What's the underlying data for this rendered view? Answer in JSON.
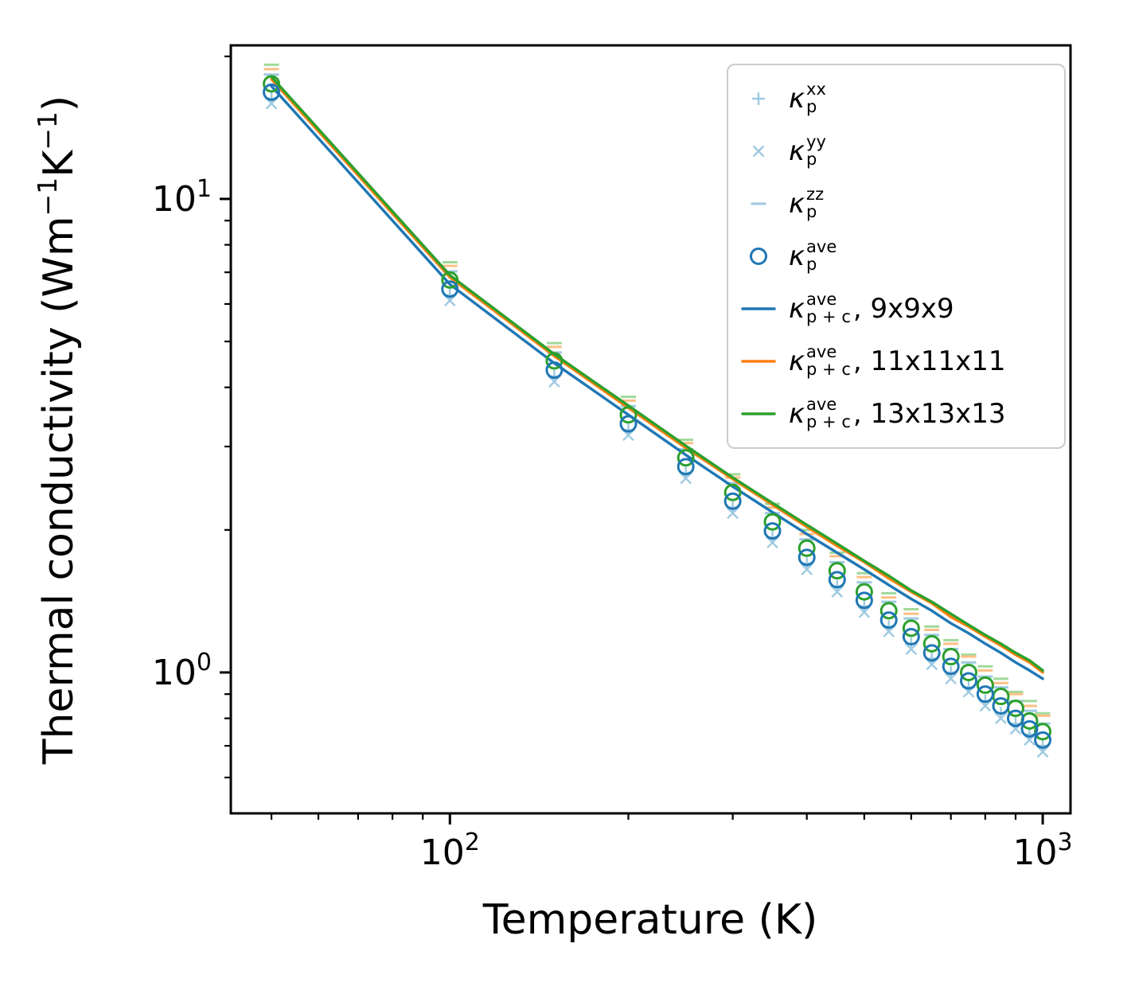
{
  "axes": {
    "xlabel": "Temperature (K)",
    "ylabel_segments": [
      {
        "text": "Thermal conductivity (Wm"
      },
      {
        "sup": "−1"
      },
      {
        "text": "K"
      },
      {
        "sup": "−1"
      },
      {
        "text": ")"
      }
    ],
    "xticks": [
      {
        "value": 100,
        "base": "10",
        "exp": "2"
      },
      {
        "value": 1000,
        "base": "10",
        "exp": "3"
      }
    ],
    "yticks": [
      {
        "value": 10,
        "base": "10",
        "exp": "1"
      },
      {
        "value": 1,
        "base": "10",
        "exp": "0"
      }
    ]
  },
  "colors": {
    "blue": "#1f77b4",
    "orange": "#ff7f0e",
    "green": "#2ca02c",
    "light_blue": "#9ecae1",
    "light_orange": "#fdbf85",
    "light_green": "#a1d99b",
    "axis": "#000000",
    "legend_border": "#cccccc"
  },
  "legend": {
    "kappa": "κ",
    "items": [
      {
        "id": "kp-xx",
        "sup": "xx",
        "sub": "p",
        "suffix": "",
        "marker": "plus",
        "color": "#9ecae1"
      },
      {
        "id": "kp-yy",
        "sup": "yy",
        "sub": "p",
        "suffix": "",
        "marker": "x",
        "color": "#9ecae1"
      },
      {
        "id": "kp-zz",
        "sup": "zz",
        "sub": "p",
        "suffix": "",
        "marker": "dash",
        "color": "#9ecae1"
      },
      {
        "id": "kp-ave",
        "sup": "ave",
        "sub": "p",
        "suffix": "",
        "marker": "circle",
        "color": "#1f77b4"
      },
      {
        "id": "kpc-9",
        "sup": "ave",
        "sub": "p + c",
        "suffix": ", 9x9x9",
        "marker": "line",
        "color": "#1f77b4"
      },
      {
        "id": "kpc-11",
        "sup": "ave",
        "sub": "p + c",
        "suffix": ", 11x11x11",
        "marker": "line",
        "color": "#ff7f0e"
      },
      {
        "id": "kpc-13",
        "sup": "ave",
        "sub": "p + c",
        "suffix": ", 13x13x13",
        "marker": "line",
        "color": "#2ca02c"
      }
    ]
  },
  "chart_data": {
    "type": "scatter",
    "title": "",
    "xlabel": "Temperature (K)",
    "ylabel": "Thermal conductivity (Wm⁻¹K⁻¹)",
    "xscale": "log",
    "yscale": "log",
    "xlim": [
      42.7,
      1114
    ],
    "ylim": [
      0.504,
      21.1
    ],
    "grid": false,
    "legend_position": "upper right",
    "x": [
      50,
      100,
      150,
      200,
      250,
      300,
      350,
      400,
      450,
      500,
      550,
      600,
      650,
      700,
      750,
      800,
      850,
      900,
      950,
      1000
    ],
    "series": [
      {
        "id": "kp-zz-13",
        "name": "κ_p^zz (13x13x13)",
        "style": "scatter",
        "marker": "dash",
        "color": "#a1d99b",
        "values": [
          19.2,
          7.35,
          4.96,
          3.82,
          3.1,
          2.62,
          2.27,
          2.0,
          1.79,
          1.62,
          1.47,
          1.36,
          1.25,
          1.17,
          1.09,
          1.03,
          0.97,
          0.91,
          0.87,
          0.82
        ]
      },
      {
        "id": "kp-zz-11",
        "name": "κ_p^zz (11x11x11)",
        "style": "scatter",
        "marker": "dash",
        "color": "#fdbf85",
        "values": [
          18.8,
          7.22,
          4.87,
          3.75,
          3.05,
          2.58,
          2.23,
          1.96,
          1.76,
          1.59,
          1.44,
          1.33,
          1.23,
          1.15,
          1.08,
          1.01,
          0.95,
          0.9,
          0.85,
          0.81
        ]
      },
      {
        "id": "kp-zz-9",
        "name": "κ_p^zz",
        "style": "scatter",
        "marker": "dash",
        "color": "#9ecae1",
        "values": [
          18.3,
          7.03,
          4.74,
          3.65,
          2.96,
          2.51,
          2.17,
          1.91,
          1.71,
          1.55,
          1.41,
          1.3,
          1.2,
          1.12,
          1.05,
          0.98,
          0.93,
          0.87,
          0.83,
          0.78
        ]
      },
      {
        "id": "kp-xx",
        "name": "κ_p^xx",
        "style": "scatter",
        "marker": "plus",
        "color": "#9ecae1",
        "values": [
          16.3,
          6.26,
          4.22,
          3.25,
          2.64,
          2.23,
          1.93,
          1.7,
          1.52,
          1.38,
          1.25,
          1.15,
          1.07,
          1.0,
          0.93,
          0.87,
          0.82,
          0.78,
          0.74,
          0.7
        ]
      },
      {
        "id": "kp-yy",
        "name": "κ_p^yy",
        "style": "scatter",
        "marker": "x",
        "color": "#9ecae1",
        "values": [
          15.9,
          6.1,
          4.11,
          3.17,
          2.57,
          2.17,
          1.88,
          1.65,
          1.48,
          1.34,
          1.22,
          1.12,
          1.04,
          0.97,
          0.91,
          0.85,
          0.8,
          0.76,
          0.72,
          0.68
        ]
      },
      {
        "id": "kpc-9",
        "name": "κ_p+c^ave, 9x9x9",
        "style": "line",
        "color": "#1f77b4",
        "values": [
          17.3,
          6.6,
          4.5,
          3.5,
          2.88,
          2.47,
          2.18,
          1.96,
          1.79,
          1.65,
          1.53,
          1.43,
          1.35,
          1.27,
          1.21,
          1.15,
          1.1,
          1.05,
          1.01,
          0.97
        ]
      },
      {
        "id": "kpc-11",
        "name": "κ_p+c^ave, 11x11x11",
        "style": "line",
        "color": "#ff7f0e",
        "values": [
          17.9,
          6.83,
          4.66,
          3.62,
          2.98,
          2.56,
          2.26,
          2.03,
          1.85,
          1.71,
          1.58,
          1.48,
          1.4,
          1.31,
          1.25,
          1.19,
          1.14,
          1.09,
          1.05,
          1.0
        ]
      },
      {
        "id": "kpc-13",
        "name": "κ_p+c^ave, 13x13x13",
        "style": "line",
        "color": "#2ca02c",
        "values": [
          18.1,
          6.9,
          4.7,
          3.66,
          3.01,
          2.58,
          2.28,
          2.05,
          1.87,
          1.72,
          1.6,
          1.49,
          1.41,
          1.33,
          1.26,
          1.2,
          1.15,
          1.1,
          1.06,
          1.01
        ]
      },
      {
        "id": "kp-ave-13",
        "name": "κ_p^ave (13x13x13)",
        "style": "scatter",
        "marker": "circle",
        "color": "#2ca02c",
        "values": [
          17.5,
          6.74,
          4.55,
          3.5,
          2.84,
          2.4,
          2.08,
          1.83,
          1.64,
          1.48,
          1.35,
          1.24,
          1.15,
          1.08,
          1.0,
          0.94,
          0.89,
          0.84,
          0.79,
          0.75
        ]
      },
      {
        "id": "kp-ave-9",
        "name": "κ_p^ave",
        "style": "scatter",
        "marker": "circle",
        "color": "#1f77b4",
        "values": [
          16.8,
          6.45,
          4.35,
          3.35,
          2.72,
          2.3,
          1.99,
          1.75,
          1.57,
          1.42,
          1.29,
          1.19,
          1.1,
          1.03,
          0.96,
          0.9,
          0.85,
          0.8,
          0.76,
          0.72
        ]
      }
    ]
  }
}
